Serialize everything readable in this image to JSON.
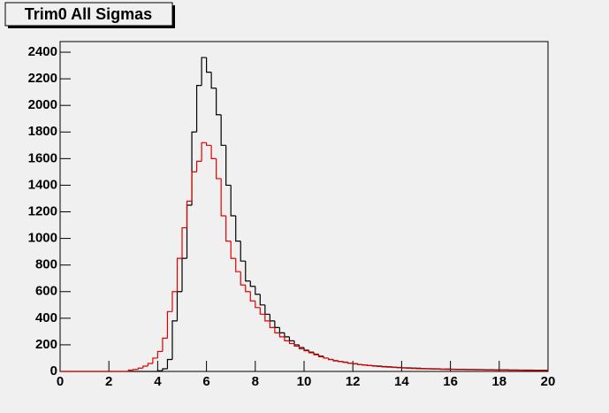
{
  "chart_data": {
    "type": "histogram",
    "title": "Trim0 All Sigmas",
    "bins": [
      0,
      0.2,
      0.4,
      0.6,
      0.8,
      1,
      1.2,
      1.4,
      1.6,
      1.8,
      2,
      2.2,
      2.4,
      2.6,
      2.8,
      3,
      3.2,
      3.4,
      3.6,
      3.8,
      4,
      4.2,
      4.4,
      4.6,
      4.8,
      5,
      5.2,
      5.4,
      5.6,
      5.8,
      6,
      6.2,
      6.4,
      6.6,
      6.8,
      7,
      7.2,
      7.4,
      7.6,
      7.8,
      8,
      8.2,
      8.4,
      8.6,
      8.8,
      9,
      9.2,
      9.4,
      9.6,
      9.8,
      10,
      10.2,
      10.4,
      10.6,
      10.8,
      11,
      11.2,
      11.4,
      11.6,
      11.8,
      12,
      12.2,
      12.4,
      12.6,
      12.8,
      13,
      13.2,
      13.4,
      13.6,
      13.8,
      14,
      14.2,
      14.4,
      14.6,
      14.8,
      15,
      15.2,
      15.4,
      15.6,
      15.8,
      16,
      16.2,
      16.4,
      16.6,
      16.8,
      17,
      17.2,
      17.4,
      17.6,
      17.8,
      18,
      18.2,
      18.4,
      18.6,
      18.8,
      19,
      19.2,
      19.4,
      19.6,
      19.8,
      20
    ],
    "series": [
      {
        "color": "#000000",
        "values": [
          0,
          0,
          0,
          0,
          0,
          0,
          0,
          0,
          0,
          0,
          0,
          0,
          0,
          0,
          0,
          0,
          0,
          0,
          0,
          0,
          5,
          20,
          90,
          380,
          600,
          850,
          1250,
          1800,
          2150,
          2360,
          2250,
          2130,
          1930,
          1700,
          1400,
          1170,
          980,
          830,
          680,
          640,
          580,
          500,
          430,
          380,
          330,
          290,
          260,
          230,
          200,
          180,
          160,
          145,
          130,
          115,
          100,
          90,
          80,
          75,
          70,
          62,
          58,
          52,
          48,
          45,
          42,
          40,
          37,
          35,
          32,
          30,
          28,
          27,
          25,
          24,
          22,
          21,
          20,
          19,
          18,
          18,
          17,
          16,
          16,
          15,
          15,
          14,
          14,
          13,
          13,
          12,
          12,
          12,
          11,
          11,
          10,
          10,
          10,
          9,
          9,
          9
        ]
      },
      {
        "color": "#e00000",
        "values": [
          0,
          0,
          0,
          0,
          0,
          0,
          0,
          0,
          0,
          0,
          0,
          0,
          0,
          0,
          10,
          15,
          25,
          40,
          60,
          100,
          150,
          250,
          450,
          600,
          850,
          1080,
          1280,
          1500,
          1580,
          1720,
          1700,
          1600,
          1450,
          1170,
          980,
          850,
          750,
          650,
          600,
          530,
          480,
          430,
          380,
          330,
          290,
          260,
          230,
          210,
          190,
          170,
          155,
          140,
          125,
          110,
          100,
          90,
          82,
          75,
          68,
          62,
          56,
          52,
          48,
          44,
          40,
          37,
          34,
          32,
          30,
          28,
          26,
          24,
          22,
          21,
          20,
          19,
          18,
          17,
          16,
          15,
          15,
          14,
          14,
          13,
          13,
          12,
          12,
          11,
          11,
          10,
          10,
          10,
          9,
          9,
          9,
          8,
          8,
          8,
          7,
          7
        ]
      }
    ],
    "xlim": [
      0,
      20
    ],
    "ylim": [
      0,
      2480
    ],
    "xticks": [
      0,
      2,
      4,
      6,
      8,
      10,
      12,
      14,
      16,
      18,
      20
    ],
    "yticks": [
      0,
      200,
      400,
      600,
      800,
      1000,
      1200,
      1400,
      1600,
      1800,
      2000,
      2200,
      2400
    ]
  }
}
